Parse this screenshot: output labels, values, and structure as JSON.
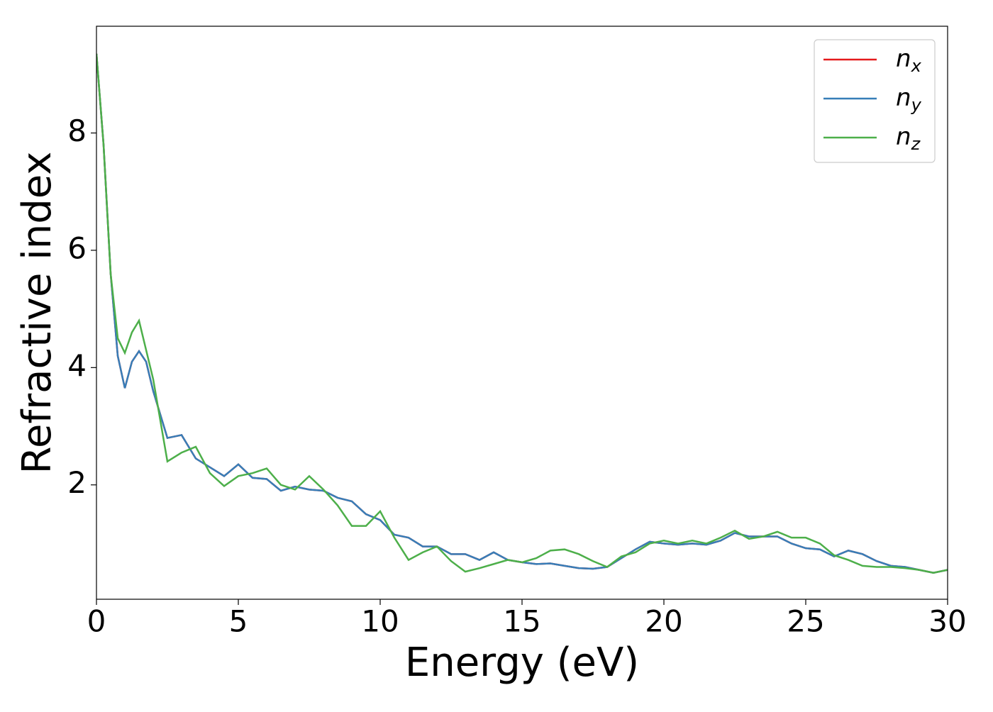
{
  "chart_data": {
    "type": "line",
    "xlabel": "Energy (eV)",
    "ylabel": "Refractive index",
    "x": [
      0,
      0.25,
      0.5,
      0.75,
      1,
      1.25,
      1.5,
      1.75,
      2,
      2.5,
      3,
      3.5,
      4,
      4.5,
      5,
      5.5,
      6,
      6.5,
      7,
      7.5,
      8,
      8.5,
      9,
      9.5,
      10,
      10.5,
      11,
      11.5,
      12,
      12.5,
      13,
      13.5,
      14,
      14.5,
      15,
      15.5,
      16,
      16.5,
      17,
      17.5,
      18,
      18.5,
      19,
      19.5,
      20,
      20.5,
      21,
      21.5,
      22,
      22.5,
      23,
      23.5,
      24,
      24.5,
      25,
      25.5,
      26,
      26.5,
      27,
      27.5,
      28,
      28.5,
      29,
      29.5,
      30
    ],
    "series": [
      {
        "name": "nx",
        "color": "#e41a1c",
        "values": [
          9.35,
          7.8,
          5.6,
          4.2,
          3.65,
          4.1,
          4.28,
          4.1,
          3.6,
          2.8,
          2.85,
          2.45,
          2.3,
          2.15,
          2.35,
          2.12,
          2.1,
          1.9,
          1.97,
          1.92,
          1.9,
          1.78,
          1.72,
          1.5,
          1.4,
          1.15,
          1.1,
          0.95,
          0.95,
          0.82,
          0.82,
          0.72,
          0.85,
          0.72,
          0.68,
          0.65,
          0.66,
          0.62,
          0.58,
          0.57,
          0.6,
          0.75,
          0.9,
          1.03,
          1.0,
          0.98,
          1.0,
          0.98,
          1.05,
          1.18,
          1.12,
          1.12,
          1.12,
          1.0,
          0.92,
          0.9,
          0.78,
          0.88,
          0.82,
          0.7,
          0.62,
          0.6,
          0.55,
          0.5,
          0.55
        ]
      },
      {
        "name": "ny",
        "color": "#377eb8",
        "values": [
          9.35,
          7.8,
          5.6,
          4.2,
          3.65,
          4.1,
          4.28,
          4.1,
          3.6,
          2.8,
          2.85,
          2.45,
          2.3,
          2.15,
          2.35,
          2.12,
          2.1,
          1.9,
          1.97,
          1.92,
          1.9,
          1.78,
          1.72,
          1.5,
          1.4,
          1.15,
          1.1,
          0.95,
          0.95,
          0.82,
          0.82,
          0.72,
          0.85,
          0.72,
          0.68,
          0.65,
          0.66,
          0.62,
          0.58,
          0.57,
          0.6,
          0.75,
          0.9,
          1.03,
          1.0,
          0.98,
          1.0,
          0.98,
          1.05,
          1.18,
          1.12,
          1.12,
          1.12,
          1.0,
          0.92,
          0.9,
          0.78,
          0.88,
          0.82,
          0.7,
          0.62,
          0.6,
          0.55,
          0.5,
          0.55
        ]
      },
      {
        "name": "nz",
        "color": "#4daf4a",
        "values": [
          9.35,
          7.8,
          5.6,
          4.5,
          4.25,
          4.6,
          4.8,
          4.3,
          3.8,
          2.4,
          2.55,
          2.65,
          2.2,
          1.98,
          2.15,
          2.2,
          2.28,
          2.0,
          1.92,
          2.15,
          1.92,
          1.65,
          1.3,
          1.3,
          1.55,
          1.1,
          0.72,
          0.85,
          0.95,
          0.7,
          0.52,
          0.58,
          0.65,
          0.72,
          0.68,
          0.75,
          0.88,
          0.9,
          0.82,
          0.7,
          0.6,
          0.78,
          0.85,
          1.0,
          1.05,
          1.0,
          1.05,
          1.0,
          1.1,
          1.22,
          1.08,
          1.12,
          1.2,
          1.1,
          1.1,
          1.0,
          0.8,
          0.72,
          0.62,
          0.6,
          0.6,
          0.58,
          0.55,
          0.5,
          0.55
        ]
      }
    ],
    "xlim": [
      0,
      30
    ],
    "xticks": [
      0,
      5,
      10,
      15,
      20,
      25,
      30
    ],
    "ylim": [
      0.05,
      9.82
    ],
    "yticks": [
      2,
      4,
      6,
      8
    ],
    "grid": false,
    "legend": "upper right"
  }
}
